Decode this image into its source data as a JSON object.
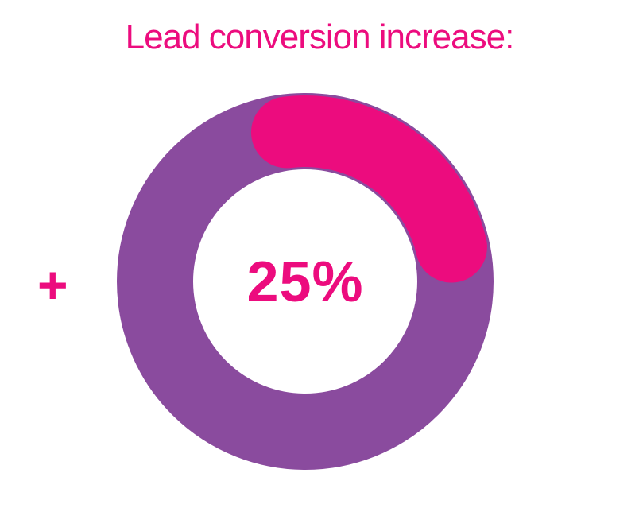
{
  "title": "Lead conversion increase:",
  "prefix_symbol": "+",
  "colors": {
    "accent": "#ec0c7e",
    "ring": "#8a4b9e",
    "background": "#ffffff"
  },
  "chart_data": {
    "type": "pie",
    "variant": "donut",
    "title": "Lead conversion increase:",
    "center_label": "25%",
    "slices": [
      {
        "value": 25,
        "color": "#ec0c7e"
      },
      {
        "value": 75,
        "color": "#8a4b9e"
      }
    ],
    "highlight_value": 25,
    "total": 100,
    "highlight_end_caps": "round"
  }
}
